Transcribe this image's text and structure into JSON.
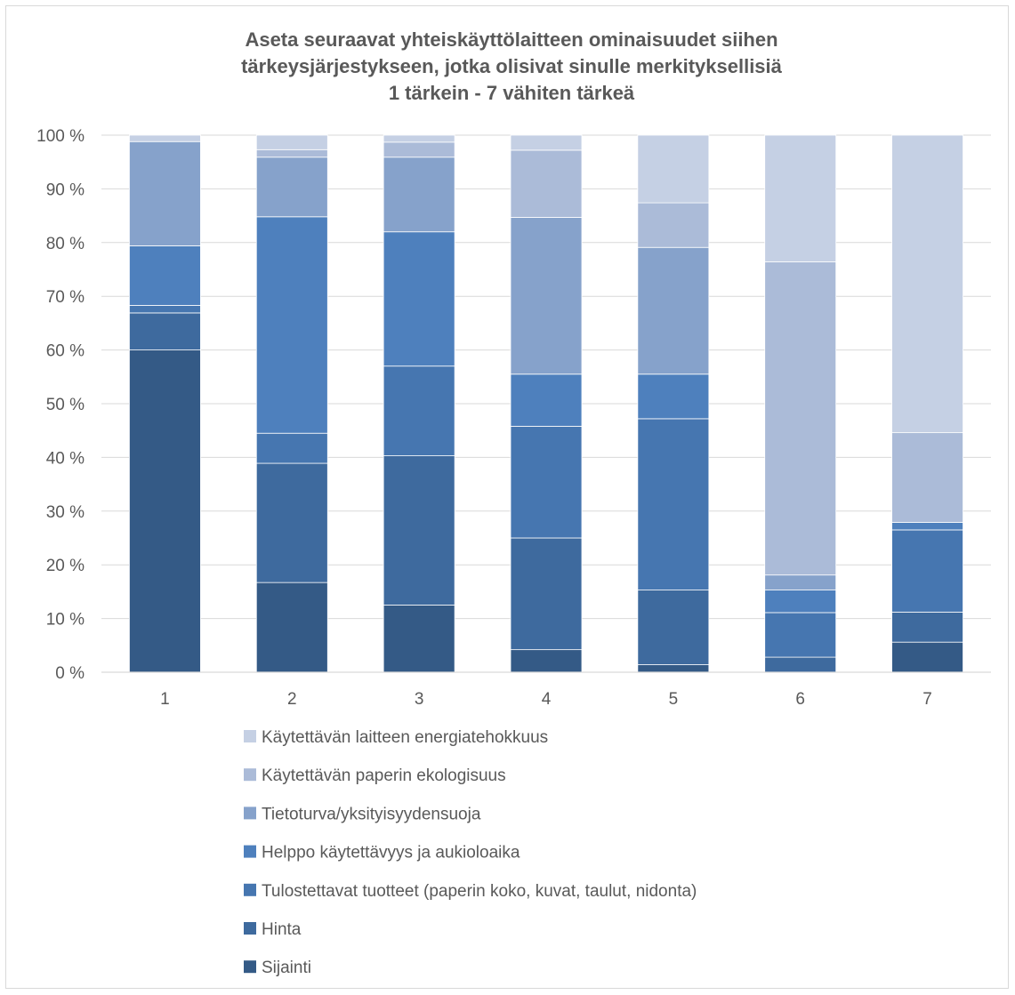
{
  "chart_data": {
    "type": "bar",
    "stacked": "percent",
    "title_lines": [
      "Aseta seuraavat yhteiskäyttölaitteen ominaisuudet siihen",
      "tärkeysjärjestykseen, jotka olisivat sinulle merkityksellisiä",
      "1 tärkein - 7 vähiten tärkeä"
    ],
    "categories": [
      "1",
      "2",
      "3",
      "4",
      "5",
      "6",
      "7"
    ],
    "y_ticks": [
      "0 %",
      "10 %",
      "20 %",
      "30 %",
      "40 %",
      "50 %",
      "60 %",
      "70 %",
      "80 %",
      "90 %",
      "100 %"
    ],
    "ylim": [
      0,
      100
    ],
    "grid": true,
    "legend_position": "bottom",
    "series": [
      {
        "name": "Sijainti",
        "color": "#345a86",
        "values": [
          60.0,
          16.7,
          12.5,
          4.2,
          1.4,
          0.0,
          5.6
        ]
      },
      {
        "name": "Hinta",
        "color": "#3e6a9e",
        "values": [
          6.9,
          22.2,
          27.8,
          20.8,
          13.9,
          2.8,
          5.6
        ]
      },
      {
        "name": "Tulostettavat tuotteet (paperin koko, kuvat, taulut, nidonta)",
        "color": "#4676b0",
        "values": [
          1.4,
          5.6,
          16.7,
          20.8,
          31.9,
          8.3,
          15.3
        ]
      },
      {
        "name": "Helppo käytettävyys ja aukioloaika",
        "color": "#4e80bd",
        "values": [
          11.1,
          40.3,
          25.0,
          9.7,
          8.3,
          4.2,
          1.4
        ]
      },
      {
        "name": "Tietoturva/yksityisyydensuoja",
        "color": "#86a2cb",
        "values": [
          19.4,
          11.1,
          13.9,
          29.2,
          23.6,
          2.8,
          0.0
        ]
      },
      {
        "name": "Käytettävän paperin ekologisuus",
        "color": "#abbbd8",
        "values": [
          0.0,
          1.4,
          2.8,
          12.5,
          8.3,
          58.3,
          16.7
        ]
      },
      {
        "name": "Käytettävän laitteen energiatehokkuus",
        "color": "#c5d0e4",
        "values": [
          1.2,
          2.7,
          1.3,
          2.8,
          12.6,
          23.6,
          55.4
        ]
      }
    ]
  }
}
